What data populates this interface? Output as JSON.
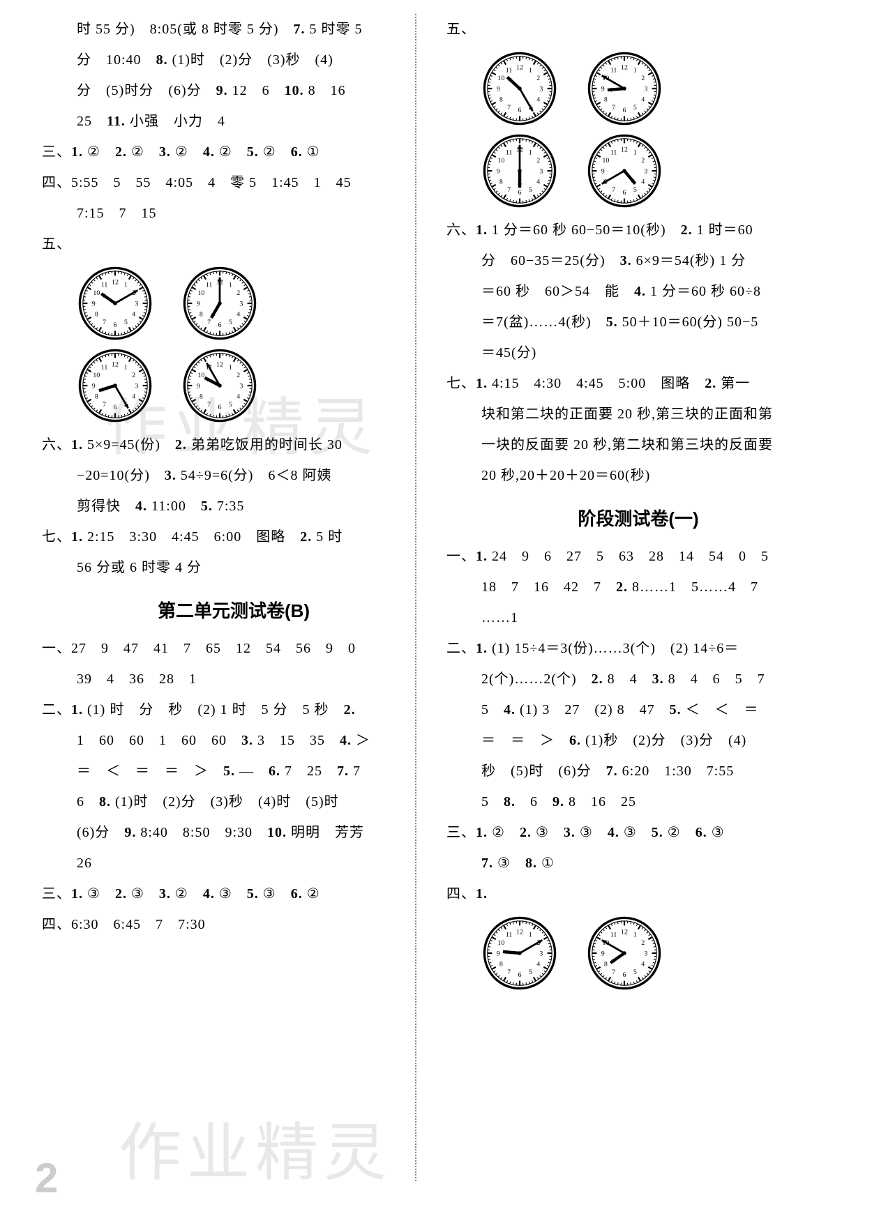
{
  "left": {
    "lines": [
      "时 55 分)　8:05(或 8 时零 5 分)　<b>7.</b> 5 时零 5",
      "分　10:40　<b>8.</b> (1)时　(2)分　(3)秒　(4)",
      "分　(5)时分　(6)分　<b>9.</b> 12　6　<b>10.</b> 8　16",
      "25　<b>11.</b> 小强　小力　4"
    ],
    "san": "三、<b>1.</b> ②　<b>2.</b> ②　<b>3.</b> ②　<b>4.</b> ②　<b>5.</b> ②　<b>6.</b> ①",
    "si": [
      "四、5:55　5　55　4:05　4　零 5　1:45　1　45",
      "7:15　7　15"
    ],
    "wu_label": "五、",
    "clocks1": [
      {
        "hour": 10,
        "minute": 10
      },
      {
        "hour": 7,
        "minute": 0
      }
    ],
    "clocks2": [
      {
        "hour": 8,
        "minute": 25
      },
      {
        "hour": 9,
        "minute": 55
      }
    ],
    "liu": [
      "六、<b>1.</b> 5×9=45(份)　<b>2.</b> 弟弟吃饭用的时间长 30",
      "−20=10(分)　<b>3.</b> 54÷9=6(分)　6＜8 阿姨",
      "剪得快　<b>4.</b> 11:00　<b>5.</b> 7:35"
    ],
    "qi": [
      "七、<b>1.</b> 2:15　3:30　4:45　6:00　图略　<b>2.</b> 5 时",
      "56 分或 6 时零 4 分"
    ],
    "titleB": "第二单元测试卷(B)",
    "yiB": [
      "一、27　9　47　41　7　65　12　54　56　9　0",
      "39　4　36　28　1"
    ],
    "erB": [
      "二、<b>1.</b> (1) 时　分　秒　(2) 1 时　5 分　5 秒　<b>2.</b>",
      "1　60　60　1　60　60　<b>3.</b> 3　15　35　<b>4.</b> ＞",
      "＝　＜　＝　＝　＞　<b>5.</b> —　<b>6.</b> 7　25　<b>7.</b> 7",
      "6　<b>8.</b> (1)时　(2)分　(3)秒　(4)时　(5)时",
      "(6)分　<b>9.</b> 8:40　8:50　9:30　<b>10.</b> 明明　芳芳",
      "26"
    ],
    "sanB": "三、<b>1.</b> ③　<b>2.</b> ③　<b>3.</b> ②　<b>4.</b> ③　<b>5.</b> ③　<b>6.</b> ②",
    "siB": "四、6:30　6:45　7　7:30"
  },
  "right": {
    "wu_label": "五、",
    "clocks1": [
      {
        "hour": 10,
        "minute": 25
      },
      {
        "hour": 8,
        "minute": 50
      }
    ],
    "clocks2": [
      {
        "hour": 6,
        "minute": 0
      },
      {
        "hour": 4,
        "minute": 40
      }
    ],
    "liu": [
      "六、<b>1.</b> 1 分＝60 秒 60−50＝10(秒)　<b>2.</b> 1 时＝60",
      "分　60−35＝25(分)　<b>3.</b> 6×9＝54(秒) 1 分",
      "＝60 秒　60＞54　能　<b>4.</b> 1 分＝60 秒 60÷8",
      "＝7(盆)……4(秒)　<b>5.</b> 50＋10＝60(分) 50−5",
      "＝45(分)"
    ],
    "qi": [
      "七、<b>1.</b> 4:15　4:30　4:45　5:00　图略　<b>2.</b> 第一",
      "块和第二块的正面要 20 秒,第三块的正面和第",
      "一块的反面要 20 秒,第二块和第三块的反面要",
      "20 秒,20＋20＋20＝60(秒)"
    ],
    "titleStage": "阶段测试卷(一)",
    "yi": [
      "一、<b>1.</b> 24　9　6　27　5　63　28　14　54　0　5",
      "18　7　16　42　7　<b>2.</b> 8……1　5……4　7",
      "……1"
    ],
    "er": [
      "二、<b>1.</b> (1) 15÷4＝3(份)……3(个)　(2) 14÷6＝",
      "2(个)……2(个)　<b>2.</b> 8　4　<b>3.</b> 8　4　6　5　7",
      "5　<b>4.</b> (1) 3　27　(2) 8　47　<b>5.</b> ＜　＜　＝",
      "＝　＝　＞　<b>6.</b> (1)秒　(2)分　(3)分　(4)",
      "秒　(5)时　(6)分　<b>7.</b> 6:20　1:30　7:55",
      "5　<b>8.</b>　6　<b>9.</b> 8　16　25"
    ],
    "san": [
      "三、<b>1.</b> ②　<b>2.</b> ③　<b>3.</b> ③　<b>4.</b> ③　<b>5.</b> ②　<b>6.</b> ③",
      "<b>7.</b> ③　<b>8.</b> ①"
    ],
    "si_label": "四、<b>1.</b>",
    "clocks3": [
      {
        "hour": 9,
        "minute": 10
      },
      {
        "hour": 7,
        "minute": 50
      }
    ]
  },
  "watermark": "作业精灵",
  "pagenum": "2",
  "clock_style": {
    "face_stroke": "#000",
    "face_fill": "#fff",
    "tick_color": "#000",
    "hand_color": "#000"
  }
}
